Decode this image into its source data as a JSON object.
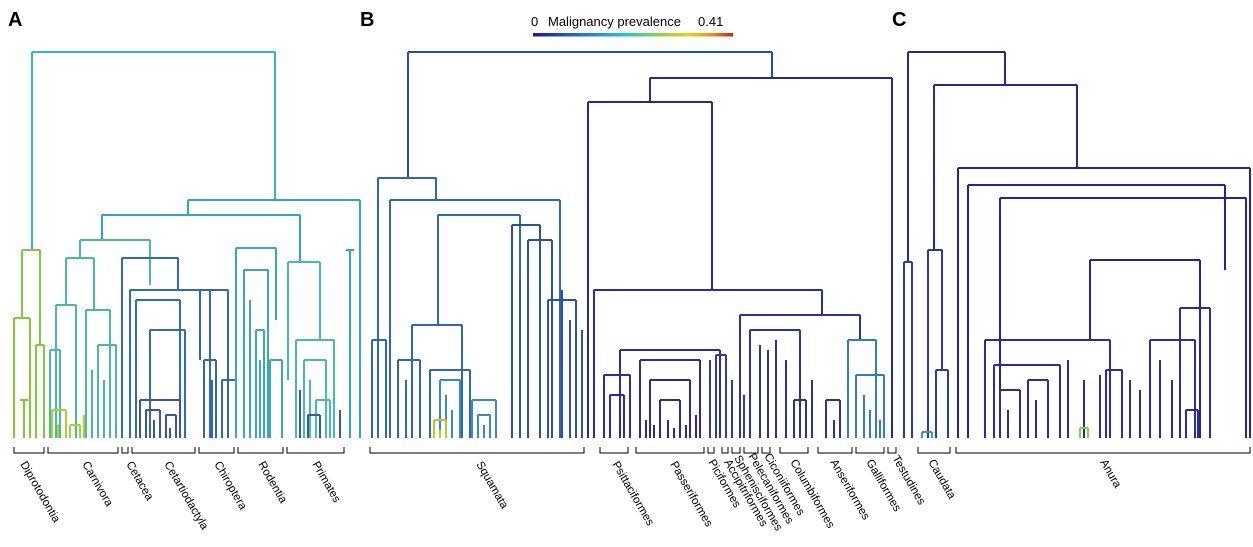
{
  "panels": [
    {
      "letter": "A",
      "clades": [
        "Diprotodontia",
        "Carnivora",
        "Cetacea",
        "Cetartiodactyla",
        "Chiroptera",
        "Rodentia",
        "Primates"
      ]
    },
    {
      "letter": "B",
      "clades": [
        "Squamata",
        "Psittaciformes",
        "Passeriformes",
        "Piciformes",
        "Accipitriformes",
        "Sphenisciformes",
        "Pelecaniformes",
        "Ciconiiformes",
        "Columbiformes",
        "Anseriformes",
        "Galliformes",
        "Testudines"
      ]
    },
    {
      "letter": "C",
      "clades": [
        "Caudata",
        "Anura"
      ]
    }
  ],
  "colorbar": {
    "min_label": "0",
    "label": "Malignancy prevalence",
    "max_label": "0.41",
    "colors": [
      "#1a1a9c",
      "#2a6fd6",
      "#22c6c6",
      "#7fd34e",
      "#e3d21a",
      "#f08a1c",
      "#c8201c"
    ]
  },
  "colors": {
    "low": "#2b2b9a",
    "mid_low": "#2f6cb8",
    "mid": "#3aa8b8",
    "mid_high": "#57c98e",
    "high": "#9ad336"
  }
}
